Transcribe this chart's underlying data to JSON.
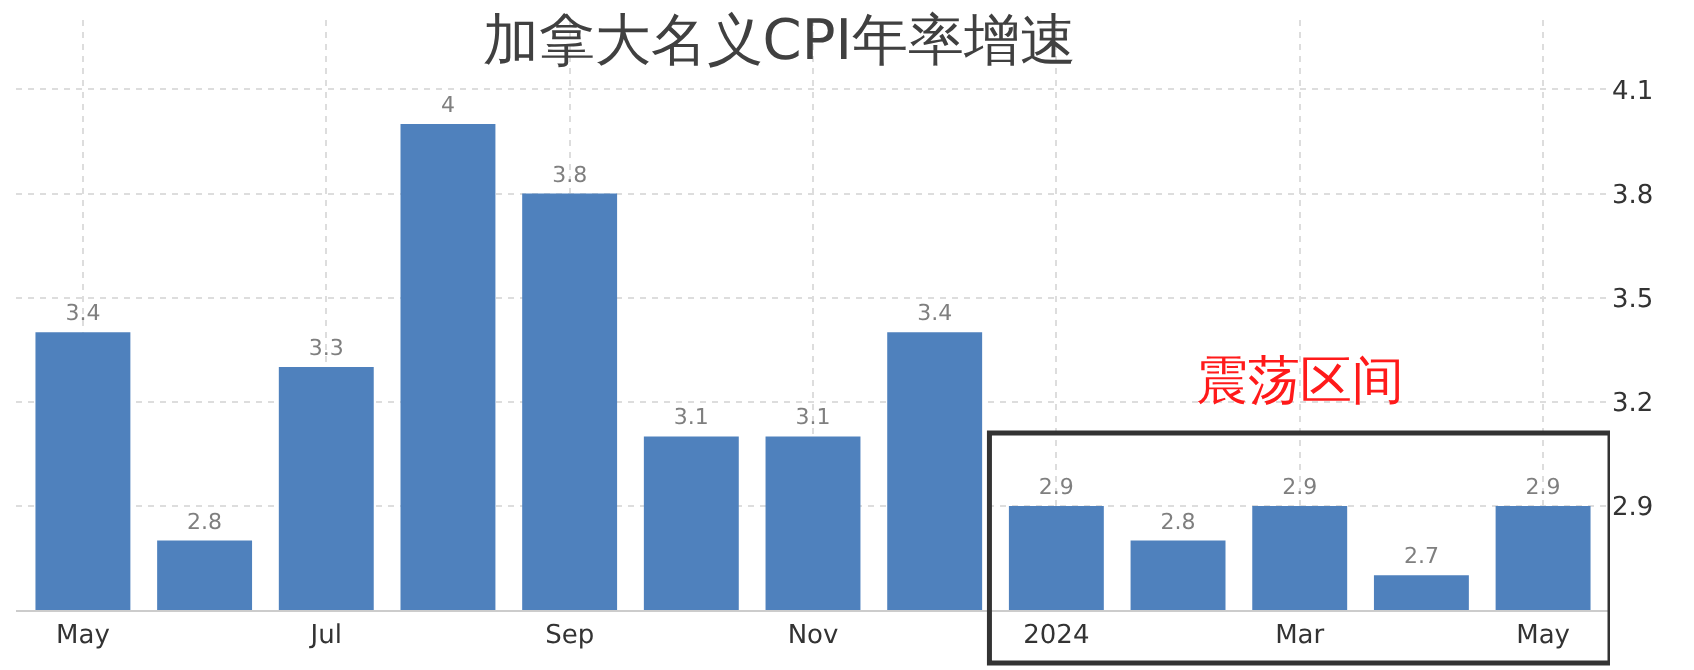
{
  "chart_data": {
    "type": "bar",
    "title": "加拿大名义CPI年率增速",
    "categories": [
      "May",
      null,
      "Jul",
      null,
      "Sep",
      null,
      "Nov",
      null,
      "2024",
      null,
      "Mar",
      null,
      "May"
    ],
    "values": [
      3.4,
      2.8,
      3.3,
      4,
      3.8,
      3.1,
      3.1,
      3.4,
      2.9,
      2.8,
      2.9,
      2.7,
      2.9
    ],
    "color": "#4f81bd",
    "data_labels": true,
    "ylim": [
      2.6,
      4.3
    ],
    "yticks": [
      2.9,
      3.2,
      3.5,
      3.8,
      4.1
    ],
    "grid": true,
    "annotations": [
      "震荡区间"
    ]
  }
}
